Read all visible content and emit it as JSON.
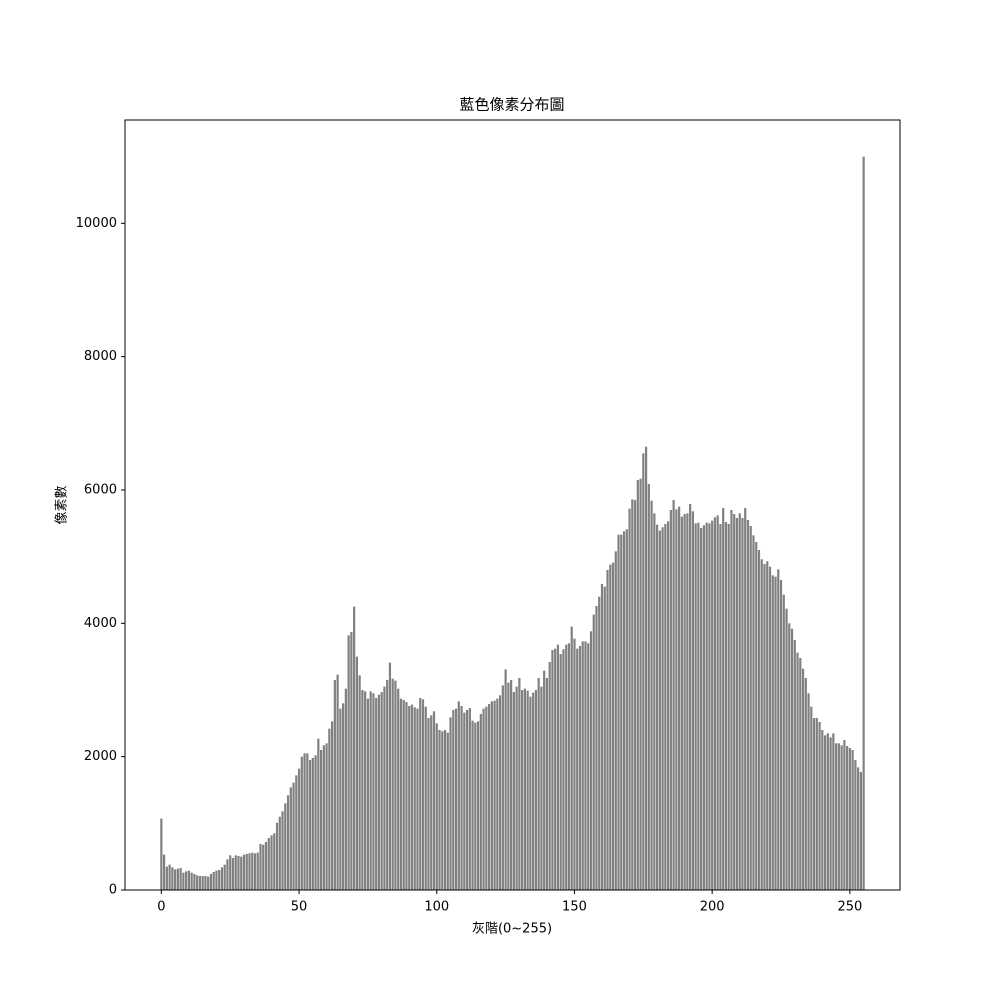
{
  "chart_data": {
    "type": "bar",
    "title": "藍色像素分布圖",
    "x_label": "灰階(0~255)",
    "y_label": "像素數",
    "color": "#808080",
    "x": [
      0,
      1,
      2,
      3,
      4,
      5,
      6,
      7,
      8,
      9,
      10,
      11,
      12,
      13,
      14,
      15,
      16,
      17,
      18,
      19,
      20,
      21,
      22,
      23,
      24,
      25,
      26,
      27,
      28,
      29,
      30,
      31,
      32,
      33,
      34,
      35,
      36,
      37,
      38,
      39,
      40,
      41,
      42,
      43,
      44,
      45,
      46,
      47,
      48,
      49,
      50,
      51,
      52,
      53,
      54,
      55,
      56,
      57,
      58,
      59,
      60,
      61,
      62,
      63,
      64,
      65,
      66,
      67,
      68,
      69,
      70,
      71,
      72,
      73,
      74,
      75,
      76,
      77,
      78,
      79,
      80,
      81,
      82,
      83,
      84,
      85,
      86,
      87,
      88,
      89,
      90,
      91,
      92,
      93,
      94,
      95,
      96,
      97,
      98,
      99,
      100,
      101,
      102,
      103,
      104,
      105,
      106,
      107,
      108,
      109,
      110,
      111,
      112,
      113,
      114,
      115,
      116,
      117,
      118,
      119,
      120,
      121,
      122,
      123,
      124,
      125,
      126,
      127,
      128,
      129,
      130,
      131,
      132,
      133,
      134,
      135,
      136,
      137,
      138,
      139,
      140,
      141,
      142,
      143,
      144,
      145,
      146,
      147,
      148,
      149,
      150,
      151,
      152,
      153,
      154,
      155,
      156,
      157,
      158,
      159,
      160,
      161,
      162,
      163,
      164,
      165,
      166,
      167,
      168,
      169,
      170,
      171,
      172,
      173,
      174,
      175,
      176,
      177,
      178,
      179,
      180,
      181,
      182,
      183,
      184,
      185,
      186,
      187,
      188,
      189,
      190,
      191,
      192,
      193,
      194,
      195,
      196,
      197,
      198,
      199,
      200,
      201,
      202,
      203,
      204,
      205,
      206,
      207,
      208,
      209,
      210,
      211,
      212,
      213,
      214,
      215,
      216,
      217,
      218,
      219,
      220,
      221,
      222,
      223,
      224,
      225,
      226,
      227,
      228,
      229,
      230,
      231,
      232,
      233,
      234,
      235,
      236,
      237,
      238,
      239,
      240,
      241,
      242,
      243,
      244,
      245,
      246,
      247,
      248,
      249,
      250,
      251,
      252,
      253,
      254,
      255
    ],
    "values": [
      1070,
      530,
      350,
      380,
      340,
      310,
      320,
      330,
      260,
      280,
      290,
      260,
      240,
      220,
      210,
      210,
      210,
      200,
      240,
      270,
      290,
      300,
      340,
      380,
      460,
      520,
      480,
      520,
      510,
      500,
      530,
      540,
      550,
      560,
      550,
      560,
      690,
      680,
      720,
      780,
      820,
      850,
      1010,
      1100,
      1180,
      1300,
      1420,
      1540,
      1610,
      1720,
      1820,
      2000,
      2050,
      2050,
      1950,
      1980,
      2020,
      2270,
      2100,
      2170,
      2200,
      2420,
      2530,
      3150,
      3230,
      2720,
      2800,
      3020,
      3820,
      3870,
      4250,
      3500,
      3220,
      3000,
      2980,
      2870,
      2980,
      2950,
      2880,
      2930,
      2970,
      3050,
      3150,
      3410,
      3170,
      3140,
      3020,
      2870,
      2850,
      2820,
      2760,
      2780,
      2740,
      2720,
      2880,
      2860,
      2750,
      2580,
      2620,
      2680,
      2500,
      2400,
      2380,
      2400,
      2360,
      2590,
      2700,
      2720,
      2830,
      2760,
      2660,
      2700,
      2730,
      2540,
      2510,
      2530,
      2640,
      2720,
      2750,
      2790,
      2830,
      2840,
      2870,
      2920,
      3070,
      3310,
      3110,
      3150,
      2970,
      3050,
      3180,
      3000,
      3020,
      2990,
      2900,
      2960,
      3000,
      3180,
      3050,
      3290,
      3180,
      3420,
      3600,
      3620,
      3680,
      3540,
      3610,
      3680,
      3700,
      3950,
      3770,
      3620,
      3660,
      3730,
      3730,
      3700,
      3880,
      4130,
      4260,
      4400,
      4590,
      4550,
      4800,
      4880,
      4910,
      5080,
      5330,
      5330,
      5380,
      5410,
      5720,
      5860,
      5850,
      6150,
      6170,
      6550,
      6650,
      6090,
      5840,
      5650,
      5480,
      5390,
      5440,
      5490,
      5530,
      5700,
      5850,
      5710,
      5750,
      5600,
      5640,
      5650,
      5790,
      5680,
      5500,
      5510,
      5430,
      5470,
      5510,
      5500,
      5540,
      5590,
      5620,
      5490,
      5730,
      5520,
      5490,
      5700,
      5640,
      5580,
      5650,
      5580,
      5730,
      5550,
      5460,
      5320,
      5220,
      5100,
      4960,
      4890,
      4930,
      4850,
      4720,
      4700,
      4810,
      4650,
      4430,
      4220,
      4000,
      3920,
      3750,
      3560,
      3480,
      3320,
      3180,
      2950,
      2750,
      2580,
      2580,
      2520,
      2400,
      2320,
      2350,
      2290,
      2350,
      2200,
      2200,
      2170,
      2250,
      2160,
      2130,
      2100,
      1950,
      1840,
      1770,
      11000
    ],
    "xlim": [
      -13.2,
      268.2
    ],
    "xticks": [
      0,
      50,
      100,
      150,
      200,
      250
    ],
    "ylim": [
      0,
      11550
    ],
    "yticks": [
      0,
      2000,
      4000,
      6000,
      8000,
      10000
    ]
  }
}
